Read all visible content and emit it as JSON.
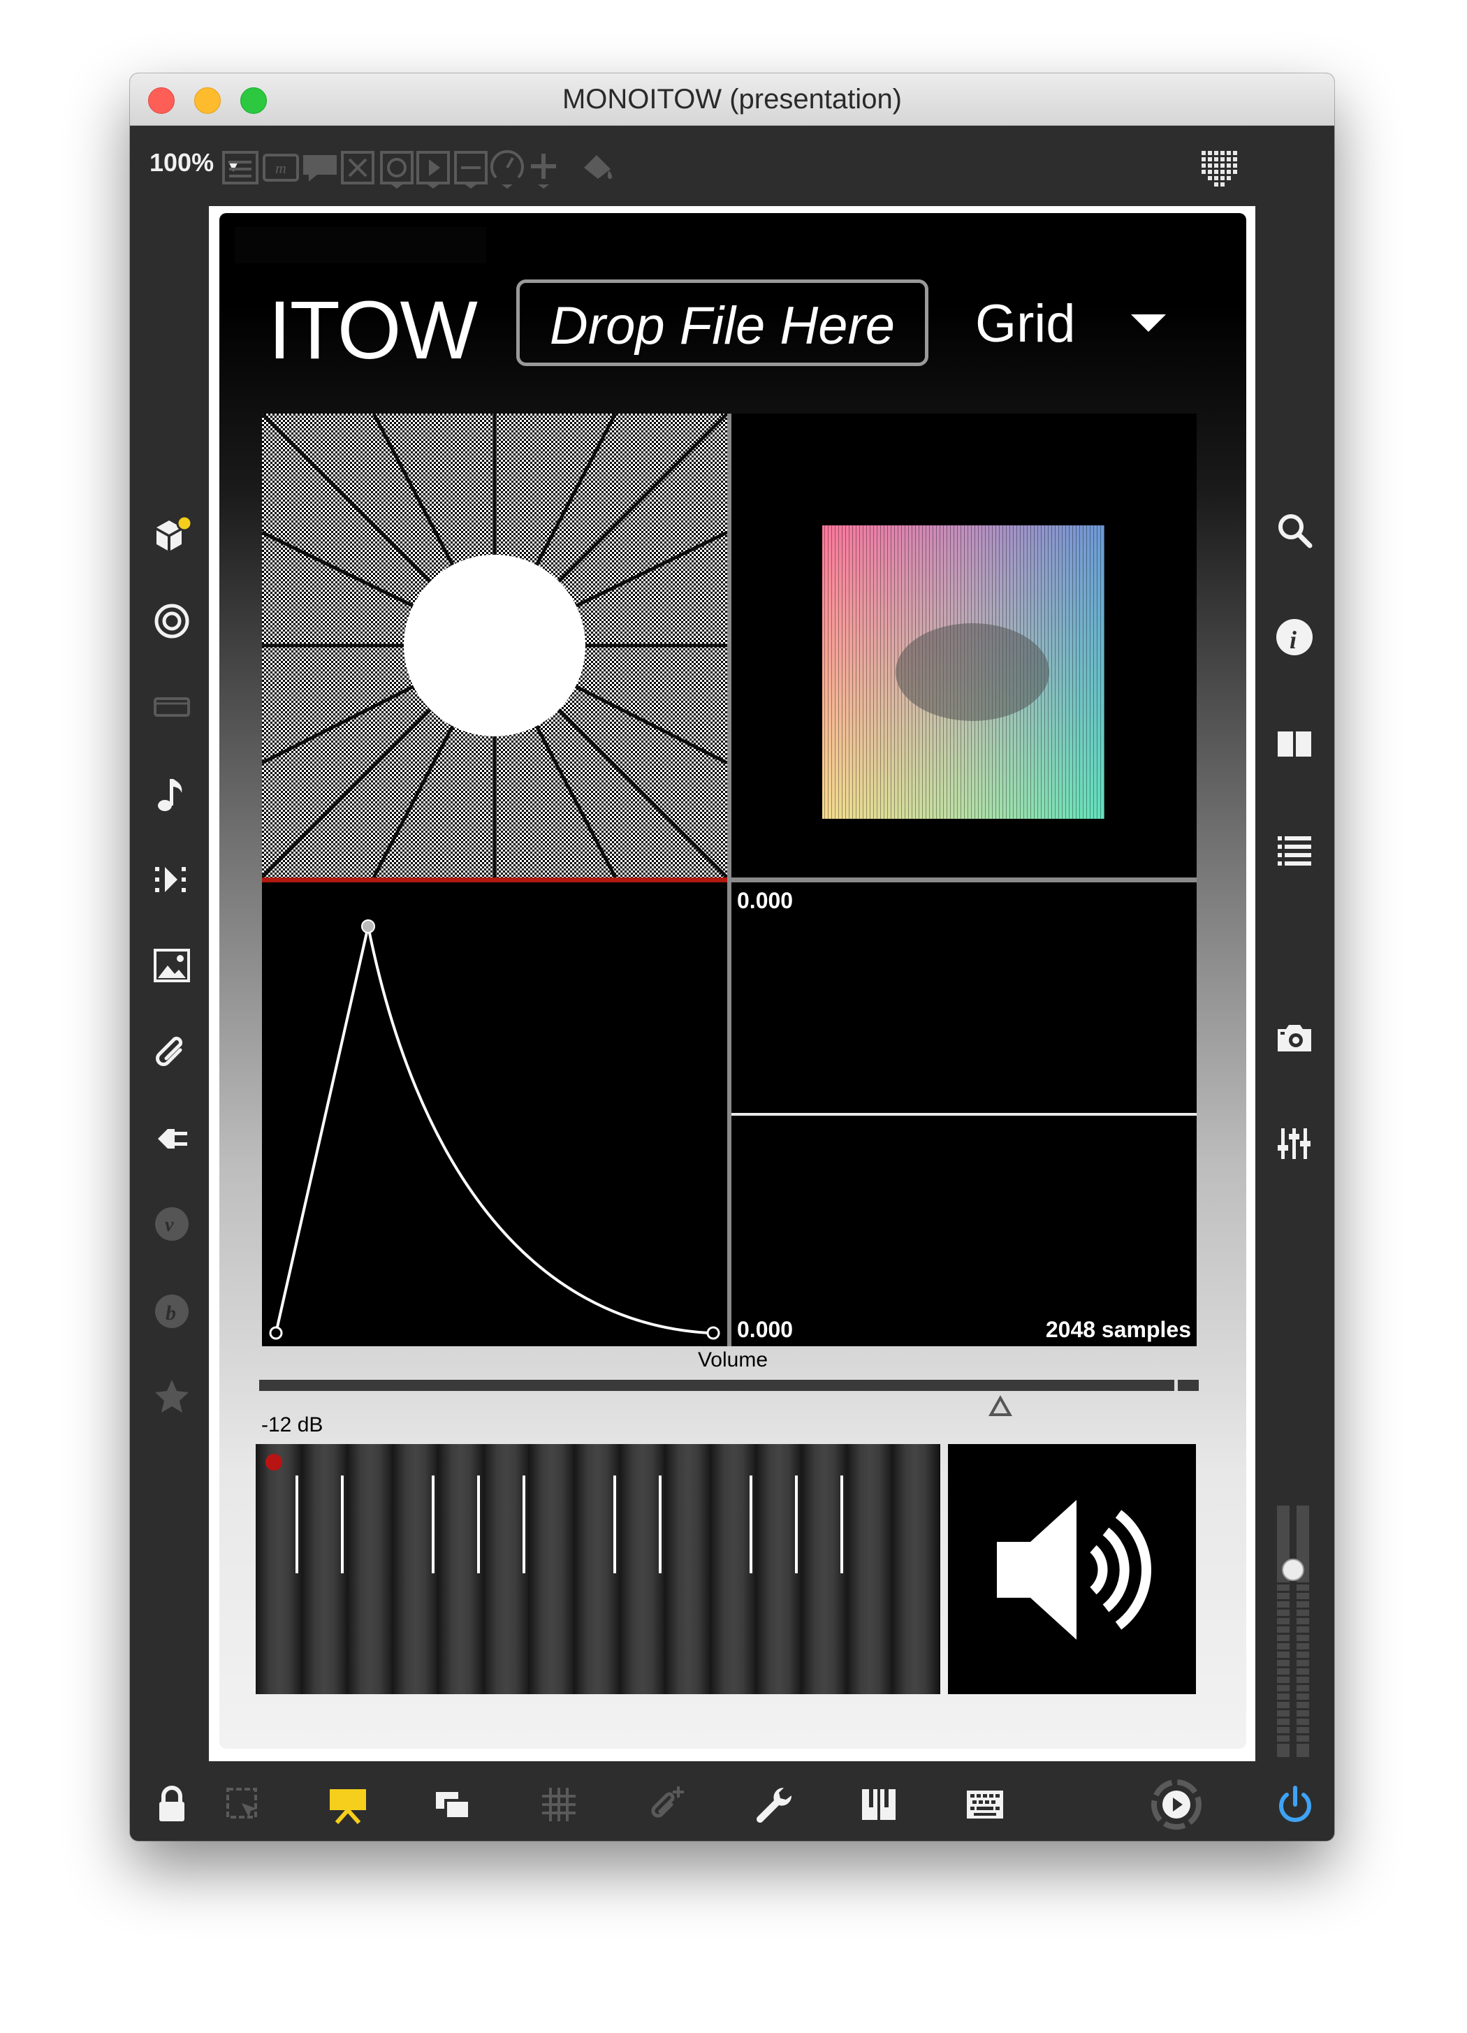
{
  "window": {
    "title": "MONOITOW (presentation)"
  },
  "toolbar": {
    "zoom": "100%",
    "zoom_arrow": "▼"
  },
  "patcher": {
    "app_name": "ITOW",
    "drop_placeholder": "Drop File Here",
    "view_menu": "Grid",
    "scope": {
      "top_value": "0.000",
      "bottom_value": "0.000",
      "samples": "2048 samples"
    },
    "volume_label": "Volume",
    "volume_db": "-12 dB",
    "volume_level": 0.81
  },
  "colors": {
    "record_dot": "#b81414",
    "playhead_line": "#b11a10",
    "presentation_active": "#f5cf1b",
    "power": "#3fa3f5"
  },
  "icons": {
    "left": [
      "package-manager-icon",
      "target-icon",
      "media-icon",
      "music-note-icon",
      "step-icon",
      "image-icon",
      "paperclip-icon",
      "plug-icon",
      "vst-icon",
      "bach-icon",
      "star-icon"
    ],
    "right": [
      "search-icon",
      "info-icon",
      "columns-icon",
      "list-icon",
      "camera-icon",
      "mixer-icon"
    ],
    "bottom": [
      "lock-icon",
      "selection-icon",
      "presentation-icon",
      "window-stack-icon",
      "grid-icon",
      "paperclip-add-icon",
      "wrench-icon",
      "piano-icon",
      "keyboard-icon",
      "play-icon",
      "power-icon"
    ]
  }
}
